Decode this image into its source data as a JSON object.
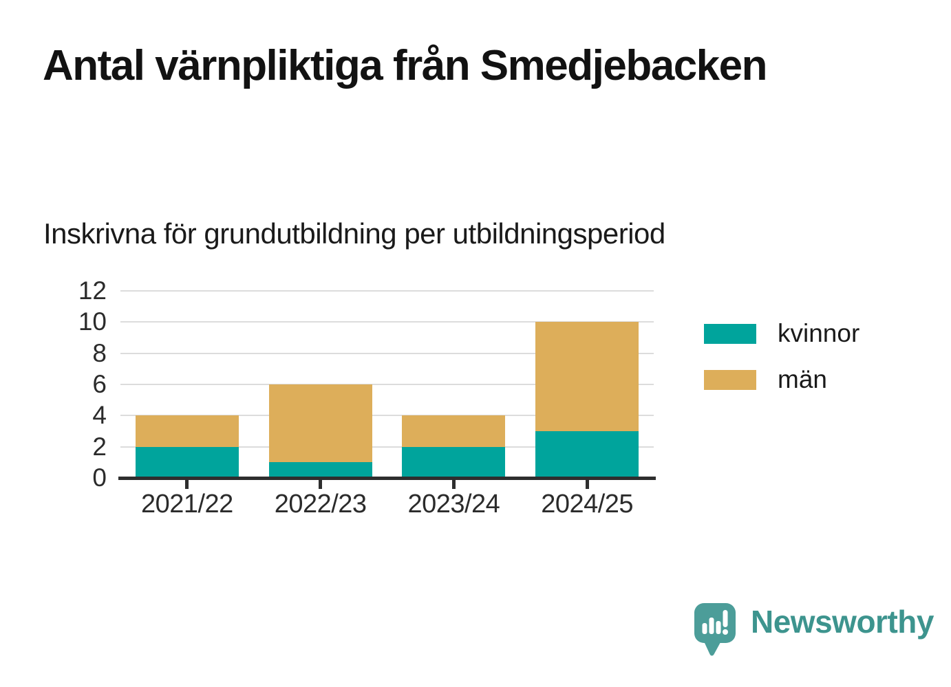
{
  "title": "Antal värnpliktiga från Smedjebacken",
  "subtitle": "Inskrivna för grundutbildning per utbildningsperiod",
  "chart_data": {
    "type": "bar",
    "stacked": true,
    "categories": [
      "2021/22",
      "2022/23",
      "2023/24",
      "2024/25"
    ],
    "series": [
      {
        "name": "kvinnor",
        "color": "#00a49c",
        "values": [
          2,
          1,
          2,
          3
        ]
      },
      {
        "name": "män",
        "color": "#ddae5a",
        "values": [
          2,
          5,
          2,
          7
        ]
      }
    ],
    "totals": [
      4,
      6,
      4,
      10
    ],
    "title": "Antal värnpliktiga från Smedjebacken",
    "subtitle": "Inskrivna för grundutbildning per utbildningsperiod",
    "xlabel": "",
    "ylabel": "",
    "ylim": [
      0,
      12
    ],
    "yticks": [
      0,
      2,
      4,
      6,
      8,
      10,
      12
    ],
    "grid": true,
    "legend_position": "right"
  },
  "legend": {
    "items": [
      {
        "label": "kvinnor",
        "color": "#00a49c"
      },
      {
        "label": "män",
        "color": "#ddae5a"
      }
    ]
  },
  "colors": {
    "grid": "#dcdcdc",
    "axis": "#2e2e2e",
    "tick_text": "#2b2b2b",
    "brand": "#3d948e",
    "brand_bubble": "#4c9d99"
  },
  "branding": {
    "name": "Newsworthy",
    "icon": "newsworthy-speech-bubble-barchart-icon"
  }
}
